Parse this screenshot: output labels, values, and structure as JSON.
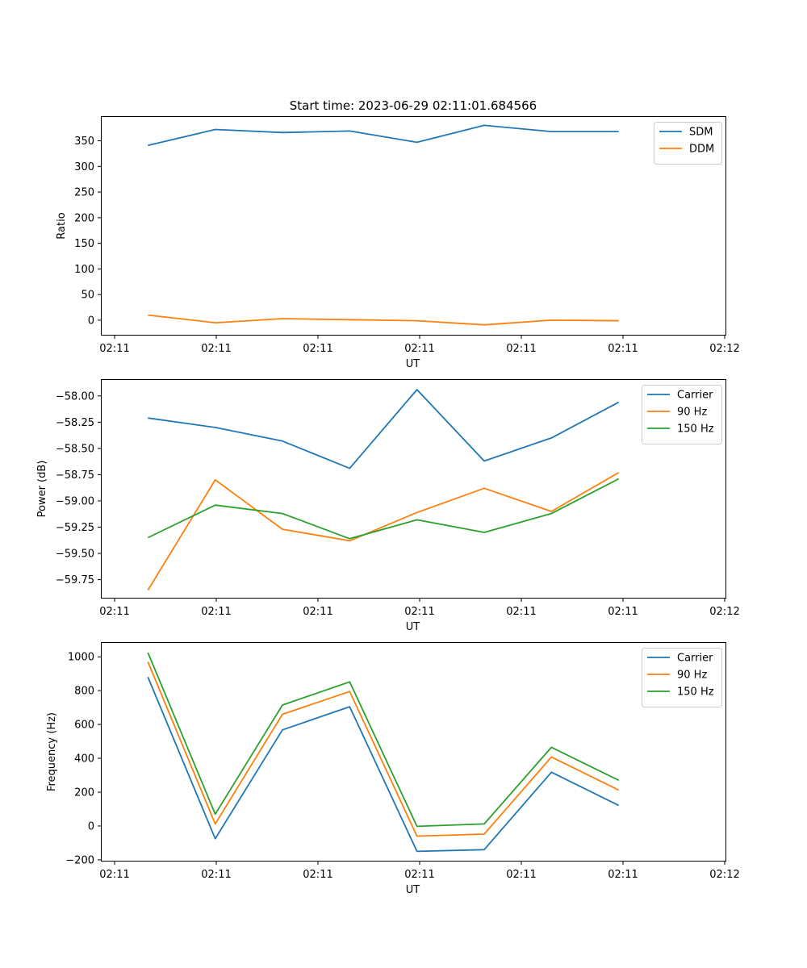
{
  "figure": {
    "title": "Start time: 2023-06-29 02:11:01.684566"
  },
  "chart_data": [
    {
      "type": "line",
      "xlabel": "UT",
      "ylabel": "Ratio",
      "x_tick_labels": [
        "02:11",
        "02:11",
        "02:11",
        "02:11",
        "02:11",
        "02:11",
        "02:12"
      ],
      "xlim": [
        -0.7,
        8.6
      ],
      "ylim": [
        -30,
        398
      ],
      "yticks": [
        0,
        50,
        100,
        150,
        200,
        250,
        300,
        350
      ],
      "ytick_labels": [
        "0",
        "50",
        "100",
        "150",
        "200",
        "250",
        "300",
        "350"
      ],
      "legend_position": "upper-right",
      "series": [
        {
          "name": "SDM",
          "color": "#1f77b4",
          "x": [
            0,
            1,
            2,
            3,
            4,
            5,
            6,
            7
          ],
          "y": [
            341,
            372,
            366,
            369,
            347,
            380,
            368,
            368
          ]
        },
        {
          "name": "DDM",
          "color": "#ff7f0e",
          "x": [
            0,
            1,
            2,
            3,
            4,
            5,
            6,
            7
          ],
          "y": [
            10,
            -5,
            3,
            1,
            -1,
            -9,
            0,
            -1
          ]
        }
      ]
    },
    {
      "type": "line",
      "xlabel": "UT",
      "ylabel": "Power (dB)",
      "x_tick_labels": [
        "02:11",
        "02:11",
        "02:11",
        "02:11",
        "02:11",
        "02:11",
        "02:12"
      ],
      "xlim": [
        -0.7,
        8.6
      ],
      "ylim": [
        -59.93,
        -57.84
      ],
      "yticks": [
        -59.75,
        -59.5,
        -59.25,
        -59.0,
        -58.75,
        -58.5,
        -58.25,
        -58.0
      ],
      "ytick_labels": [
        "−59.75",
        "−59.50",
        "−59.25",
        "−59.00",
        "−58.75",
        "−58.50",
        "−58.25",
        "−58.00"
      ],
      "legend_position": "upper-right",
      "series": [
        {
          "name": "Carrier",
          "color": "#1f77b4",
          "x": [
            0,
            1,
            2,
            3,
            4,
            5,
            6,
            7
          ],
          "y": [
            -58.21,
            -58.3,
            -58.43,
            -58.69,
            -57.94,
            -58.62,
            -58.4,
            -58.06
          ]
        },
        {
          "name": "90 Hz",
          "color": "#ff7f0e",
          "x": [
            0,
            1,
            2,
            3,
            4,
            5,
            6,
            7
          ],
          "y": [
            -59.85,
            -58.8,
            -59.27,
            -59.38,
            -59.11,
            -58.88,
            -59.1,
            -58.73
          ]
        },
        {
          "name": "150 Hz",
          "color": "#2ca02c",
          "x": [
            0,
            1,
            2,
            3,
            4,
            5,
            6,
            7
          ],
          "y": [
            -59.35,
            -59.04,
            -59.12,
            -59.36,
            -59.18,
            -59.3,
            -59.12,
            -58.79
          ]
        }
      ]
    },
    {
      "type": "line",
      "xlabel": "UT",
      "ylabel": "Frequency (Hz)",
      "x_tick_labels": [
        "02:11",
        "02:11",
        "02:11",
        "02:11",
        "02:11",
        "02:11",
        "02:12"
      ],
      "xlim": [
        -0.7,
        8.6
      ],
      "ylim": [
        -210,
        1087
      ],
      "yticks": [
        -200,
        0,
        200,
        400,
        600,
        800,
        1000
      ],
      "ytick_labels": [
        "−200",
        "0",
        "200",
        "400",
        "600",
        "800",
        "1000"
      ],
      "legend_position": "upper-right",
      "series": [
        {
          "name": "Carrier",
          "color": "#1f77b4",
          "x": [
            0,
            1,
            2,
            3,
            4,
            5,
            6,
            7
          ],
          "y": [
            880,
            -75,
            568,
            705,
            -150,
            -140,
            318,
            122
          ]
        },
        {
          "name": "90 Hz",
          "color": "#ff7f0e",
          "x": [
            0,
            1,
            2,
            3,
            4,
            5,
            6,
            7
          ],
          "y": [
            970,
            12,
            660,
            795,
            -60,
            -48,
            408,
            212
          ]
        },
        {
          "name": "150 Hz",
          "color": "#2ca02c",
          "x": [
            0,
            1,
            2,
            3,
            4,
            5,
            6,
            7
          ],
          "y": [
            1025,
            70,
            715,
            852,
            -2,
            12,
            465,
            270
          ]
        }
      ]
    }
  ]
}
